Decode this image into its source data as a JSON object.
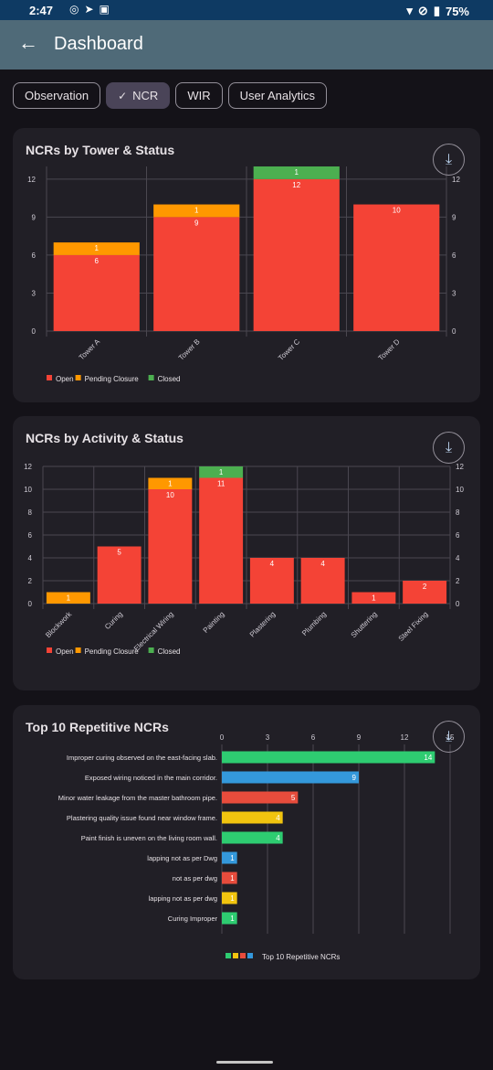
{
  "status_bar": {
    "time": "2:47",
    "battery": "75%"
  },
  "app_bar": {
    "back_icon": "arrow-left-icon",
    "title": "Dashboard"
  },
  "tabs": [
    {
      "label": "Observation",
      "selected": false
    },
    {
      "label": "NCR",
      "selected": true
    },
    {
      "label": "WIR",
      "selected": false
    },
    {
      "label": "User Analytics",
      "selected": false
    }
  ],
  "colors": {
    "open": "#f44336",
    "pending": "#ff9800",
    "closed": "#4caf50"
  },
  "charts": [
    {
      "title": "NCRs by Tower & Status",
      "chart_data": {
        "type": "bar",
        "stacked": true,
        "categories": [
          "Tower A",
          "Tower B",
          "Tower C",
          "Tower D"
        ],
        "series": [
          {
            "name": "Open",
            "color": "#f44336",
            "values": [
              6,
              9,
              12,
              10
            ]
          },
          {
            "name": "Pending Closure",
            "color": "#ff9800",
            "values": [
              1,
              1,
              0,
              0
            ]
          },
          {
            "name": "Closed",
            "color": "#4caf50",
            "values": [
              0,
              0,
              1,
              0
            ]
          }
        ],
        "ylim": [
          0,
          13
        ],
        "yticks": [
          0,
          3,
          6,
          9,
          12
        ],
        "grid": true,
        "legend": "bottom-left"
      }
    },
    {
      "title": "NCRs by Activity & Status",
      "chart_data": {
        "type": "bar",
        "stacked": true,
        "categories": [
          "Blockwork",
          "Curing",
          "Electrical Wiring",
          "Painting",
          "Plastering",
          "Plumbing",
          "Shuttering",
          "Steel Fixing"
        ],
        "series": [
          {
            "name": "Open",
            "color": "#f44336",
            "values": [
              0,
              5,
              10,
              11,
              4,
              4,
              1,
              2
            ]
          },
          {
            "name": "Pending Closure",
            "color": "#ff9800",
            "values": [
              1,
              0,
              1,
              0,
              0,
              0,
              0,
              0
            ]
          },
          {
            "name": "Closed",
            "color": "#4caf50",
            "values": [
              0,
              0,
              0,
              1,
              0,
              0,
              0,
              0
            ]
          }
        ],
        "ylim": [
          0,
          12
        ],
        "yticks": [
          0,
          2,
          4,
          6,
          8,
          10,
          12
        ],
        "grid": true,
        "legend": "bottom-left"
      }
    },
    {
      "title": "Top 10 Repetitive NCRs",
      "chart_data": {
        "type": "bar",
        "orientation": "horizontal",
        "categories": [
          "Improper curing observed on the east-facing slab.",
          "Exposed wiring noticed in the main corridor.",
          "Minor water leakage from the master bathroom pipe.",
          "Plastering quality issue found near window frame.",
          "Paint finish is uneven on the living room wall.",
          "lapping not as per Dwg",
          "not as per dwg",
          "lapping not as per dwg",
          "Curing Improper"
        ],
        "values": [
          14,
          9,
          5,
          4,
          4,
          1,
          1,
          1,
          1
        ],
        "colors": [
          "#2ecc71",
          "#3498db",
          "#e74c3c",
          "#f1c40f",
          "#2ecc71",
          "#3498db",
          "#e74c3c",
          "#f1c40f",
          "#2ecc71"
        ],
        "xlim": [
          0,
          15
        ],
        "xticks": [
          0,
          3,
          6,
          9,
          12,
          15
        ],
        "grid": true,
        "legend_label": "Top 10 Repetitive NCRs",
        "legend": "bottom-center"
      }
    }
  ]
}
